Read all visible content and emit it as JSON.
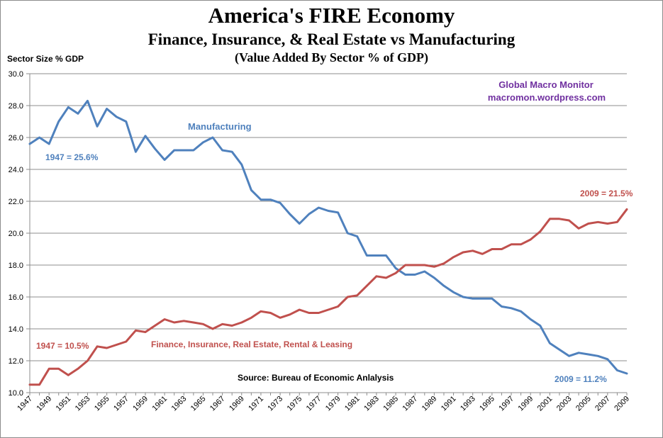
{
  "title": "America's FIRE Economy",
  "subtitle": "Finance, Insurance, & Real Estate vs Manufacturing",
  "subtitle2": "(Value Added By Sector % of GDP)",
  "ylabel": "Sector Size % GDP",
  "credit": {
    "line1": "Global Macro Monitor",
    "line2": "macromon.wordpress.com",
    "color": "#7030a0"
  },
  "source": "Source:  Bureau of Economic Anlalysis",
  "colors": {
    "manufacturing": "#4f81bd",
    "fire": "#c0504d"
  },
  "chart_data": {
    "type": "line",
    "x": [
      1947,
      1948,
      1949,
      1950,
      1951,
      1952,
      1953,
      1954,
      1955,
      1956,
      1957,
      1958,
      1959,
      1960,
      1961,
      1962,
      1963,
      1964,
      1965,
      1966,
      1967,
      1968,
      1969,
      1970,
      1971,
      1972,
      1973,
      1974,
      1975,
      1976,
      1977,
      1978,
      1979,
      1980,
      1981,
      1982,
      1983,
      1984,
      1985,
      1986,
      1987,
      1988,
      1989,
      1990,
      1991,
      1992,
      1993,
      1994,
      1995,
      1996,
      1997,
      1998,
      1999,
      2000,
      2001,
      2002,
      2003,
      2004,
      2005,
      2006,
      2007,
      2008,
      2009
    ],
    "x_tick_labels": [
      "1947",
      "1949",
      "1951",
      "1953",
      "1955",
      "1957",
      "1959",
      "1961",
      "1963",
      "1965",
      "1967",
      "1969",
      "1971",
      "1973",
      "1975",
      "1977",
      "1979",
      "1981",
      "1983",
      "1985",
      "1987",
      "1989",
      "1991",
      "1993",
      "1995",
      "1997",
      "1999",
      "2001",
      "2003",
      "2005",
      "2007",
      "2009"
    ],
    "y_tick_labels": [
      "10.0",
      "12.0",
      "14.0",
      "16.0",
      "18.0",
      "20.0",
      "22.0",
      "24.0",
      "26.0",
      "28.0",
      "30.0"
    ],
    "ylim": [
      10,
      30
    ],
    "grid": true,
    "series": [
      {
        "name": "Manufacturing",
        "values": [
          25.6,
          26.0,
          25.6,
          27.0,
          27.9,
          27.5,
          28.3,
          26.7,
          27.8,
          27.3,
          27.0,
          25.1,
          26.1,
          25.3,
          24.6,
          25.2,
          25.2,
          25.2,
          25.7,
          26.0,
          25.2,
          25.1,
          24.3,
          22.7,
          22.1,
          22.1,
          21.9,
          21.2,
          20.6,
          21.2,
          21.6,
          21.4,
          21.3,
          20.0,
          19.8,
          18.6,
          18.6,
          18.6,
          17.8,
          17.4,
          17.4,
          17.6,
          17.2,
          16.7,
          16.3,
          16.0,
          15.9,
          15.9,
          15.9,
          15.4,
          15.3,
          15.1,
          14.6,
          14.2,
          13.1,
          12.7,
          12.3,
          12.5,
          12.4,
          12.3,
          12.1,
          11.4,
          11.2
        ]
      },
      {
        "name": "Finance, Insurance, Real Estate, Rental  & Leasing",
        "values": [
          10.5,
          10.5,
          11.5,
          11.5,
          11.1,
          11.5,
          12.0,
          12.9,
          12.8,
          13.0,
          13.2,
          13.9,
          13.8,
          14.2,
          14.6,
          14.4,
          14.5,
          14.4,
          14.3,
          14.0,
          14.3,
          14.2,
          14.4,
          14.7,
          15.1,
          15.0,
          14.7,
          14.9,
          15.2,
          15.0,
          15.0,
          15.2,
          15.4,
          16.0,
          16.1,
          16.7,
          17.3,
          17.2,
          17.5,
          18.0,
          18.0,
          18.0,
          17.9,
          18.1,
          18.5,
          18.8,
          18.9,
          18.7,
          19.0,
          19.0,
          19.3,
          19.3,
          19.6,
          20.1,
          20.9,
          20.9,
          20.8,
          20.3,
          20.6,
          20.7,
          20.6,
          20.7,
          21.5
        ]
      }
    ],
    "annotations": {
      "mfg_label": "Manufacturing",
      "mfg_start": "1947 = 25.6%",
      "mfg_end": "2009 = 11.2%",
      "fire_label": "Finance, Insurance, Real Estate, Rental  & Leasing",
      "fire_start": "1947 = 10.5%",
      "fire_end": "2009 = 21.5%"
    }
  }
}
